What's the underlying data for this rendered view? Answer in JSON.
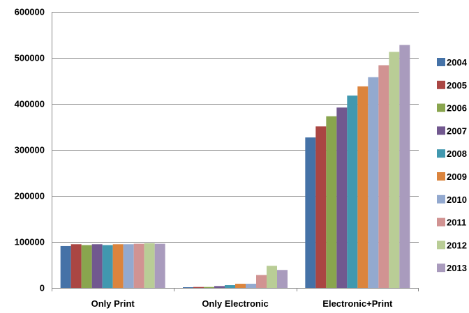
{
  "chart_data": {
    "type": "bar",
    "categories": [
      "Only Print",
      "Only Electronic",
      "Electronic+Print"
    ],
    "series": [
      {
        "name": "2004",
        "color": "#4572A7",
        "values": [
          91000,
          1500,
          327000
        ]
      },
      {
        "name": "2005",
        "color": "#AA4643",
        "values": [
          95000,
          2000,
          351000
        ]
      },
      {
        "name": "2006",
        "color": "#89A54E",
        "values": [
          93000,
          2000,
          373000
        ]
      },
      {
        "name": "2007",
        "color": "#71588F",
        "values": [
          95000,
          4000,
          392000
        ]
      },
      {
        "name": "2008",
        "color": "#4198AF",
        "values": [
          93000,
          6000,
          418000
        ]
      },
      {
        "name": "2009",
        "color": "#DB843D",
        "values": [
          95000,
          9000,
          438000
        ]
      },
      {
        "name": "2010",
        "color": "#93A9CF",
        "values": [
          95000,
          9000,
          458000
        ]
      },
      {
        "name": "2011",
        "color": "#D19392",
        "values": [
          96000,
          28000,
          484000
        ]
      },
      {
        "name": "2012",
        "color": "#B9CD96",
        "values": [
          97000,
          48000,
          513000
        ]
      },
      {
        "name": "2013",
        "color": "#A99BBD",
        "values": [
          96000,
          39000,
          528000
        ]
      }
    ],
    "y_ticks": [
      "0",
      "100000",
      "200000",
      "300000",
      "400000",
      "500000",
      "600000"
    ],
    "ylim": [
      0,
      600000
    ],
    "grid": true,
    "legend_position": "right"
  }
}
